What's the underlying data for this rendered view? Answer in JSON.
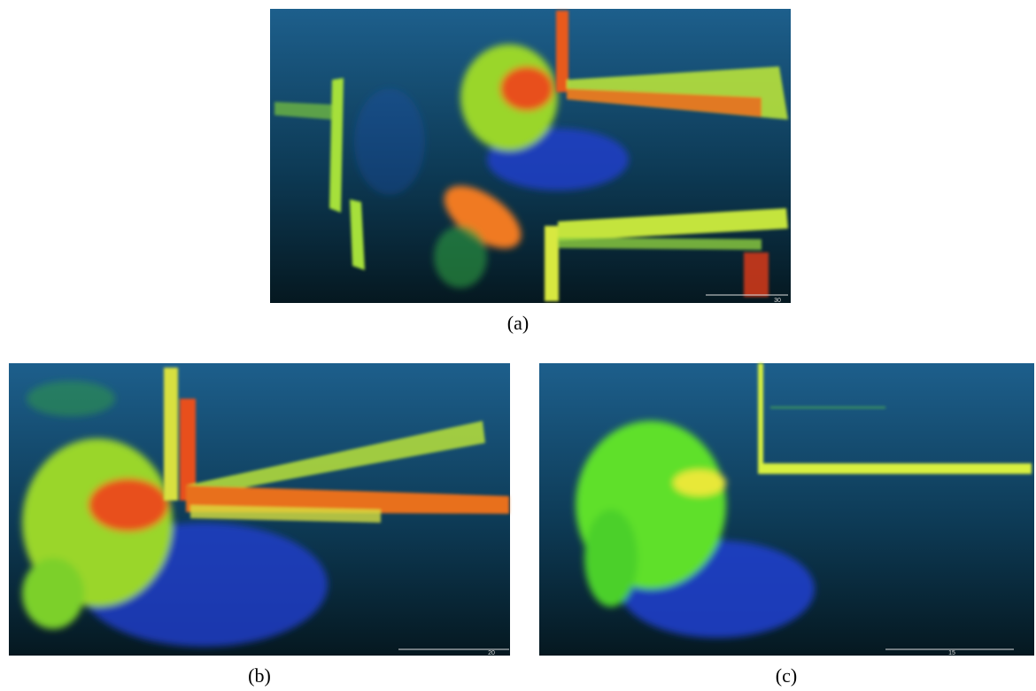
{
  "panels": [
    {
      "caption": "(a)",
      "scale_label": "30"
    },
    {
      "caption": "(b)",
      "scale_label": "20"
    },
    {
      "caption": "(c)",
      "scale_label": "15"
    }
  ]
}
